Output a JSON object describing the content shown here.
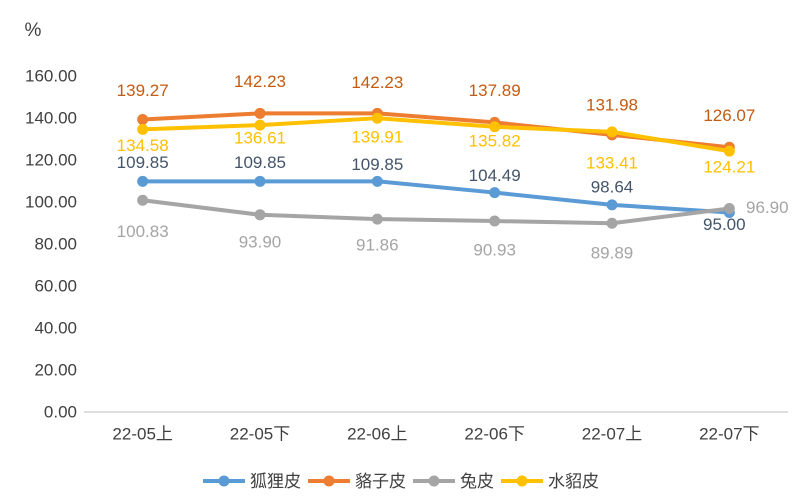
{
  "chart_data": {
    "type": "line",
    "title": "",
    "xlabel": "",
    "ylabel": "%",
    "grid": false,
    "legend_position": "bottom",
    "categories": [
      "22-05上",
      "22-05下",
      "22-06上",
      "22-06下",
      "22-07上",
      "22-07下"
    ],
    "axis": {
      "ymin": 0,
      "ymax": 160,
      "step": 20,
      "tick_labels": [
        "0.00",
        "20.00",
        "40.00",
        "60.00",
        "80.00",
        "100.00",
        "120.00",
        "140.00",
        "160.00"
      ],
      "tick_color": "#404040",
      "axis_line_color": "#C9C9C9"
    },
    "series": [
      {
        "name": "狐狸皮",
        "color": "#5B9BD5",
        "label_color": "#44546A",
        "values": [
          109.85,
          109.85,
          109.85,
          104.49,
          98.64,
          95.0
        ],
        "labels": [
          "109.85",
          "109.85",
          "109.85",
          "104.49",
          "98.64",
          "95.00"
        ],
        "label_offsets": [
          [
            0,
            -19
          ],
          [
            0,
            -19
          ],
          [
            0,
            -17
          ],
          [
            0,
            -17
          ],
          [
            0,
            -18
          ],
          [
            -5,
            12
          ]
        ]
      },
      {
        "name": "貉子皮",
        "color": "#ED7D31",
        "label_color": "#C55A11",
        "values": [
          139.27,
          142.23,
          142.23,
          137.89,
          131.98,
          126.07
        ],
        "labels": [
          "139.27",
          "142.23",
          "142.23",
          "137.89",
          "131.98",
          "126.07"
        ],
        "label_offsets": [
          [
            0,
            -29
          ],
          [
            0,
            -32
          ],
          [
            0,
            -31
          ],
          [
            0,
            -32
          ],
          [
            0,
            -30
          ],
          [
            0,
            -32
          ]
        ]
      },
      {
        "name": "兔皮",
        "color": "#A5A5A5",
        "label_color": "#A5A5A5",
        "values": [
          100.83,
          93.9,
          91.86,
          90.93,
          89.89,
          96.9
        ],
        "labels": [
          "100.83",
          "93.90",
          "91.86",
          "90.93",
          "89.89",
          "96.90"
        ],
        "label_offsets": [
          [
            0,
            31
          ],
          [
            0,
            27
          ],
          [
            0,
            26
          ],
          [
            0,
            29
          ],
          [
            0,
            30
          ],
          [
            38,
            -1
          ]
        ]
      },
      {
        "name": "水貂皮",
        "color": "#FFC000",
        "label_color": "#FFC000",
        "values": [
          134.58,
          136.61,
          139.91,
          135.82,
          133.41,
          124.21
        ],
        "labels": [
          "134.58",
          "136.61",
          "139.91",
          "135.82",
          "133.41",
          "124.21"
        ],
        "label_offsets": [
          [
            0,
            16
          ],
          [
            0,
            13
          ],
          [
            0,
            19
          ],
          [
            0,
            14
          ],
          [
            0,
            31
          ],
          [
            0,
            16
          ]
        ]
      }
    ]
  }
}
